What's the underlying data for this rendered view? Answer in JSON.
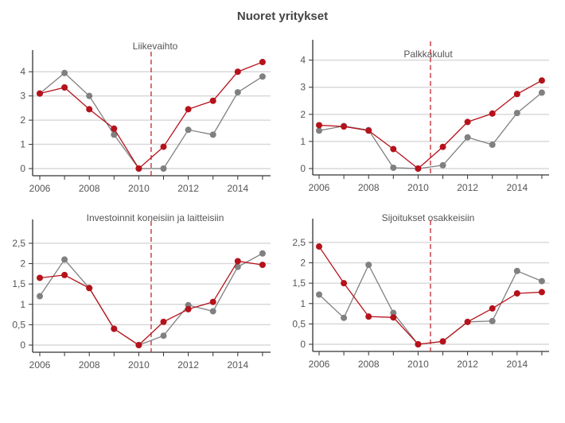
{
  "title": "Nuoret yritykset",
  "colors": {
    "series_red": "#b5121b",
    "series_gray": "#808080",
    "grid": "#d9d9d9",
    "divider": "#c0272d"
  },
  "chart_data": [
    {
      "type": "line",
      "title": "Liikevaihto",
      "x": [
        2006,
        2007,
        2008,
        2009,
        2010,
        2011,
        2012,
        2013,
        2014,
        2015
      ],
      "x_ticks": [
        "2006",
        "2008",
        "2010",
        "2012",
        "2014"
      ],
      "y_ticks": [
        "0",
        "1",
        "2",
        "3",
        "4"
      ],
      "y_tick_values": [
        0,
        1,
        2,
        3,
        4
      ],
      "ylim": [
        0,
        4.5
      ],
      "vline_x": 2010.5,
      "series": [
        {
          "name": "red",
          "values": [
            3.1,
            3.35,
            2.45,
            1.65,
            0,
            0.9,
            2.45,
            2.8,
            4.0,
            4.4
          ]
        },
        {
          "name": "gray",
          "values": [
            3.1,
            3.95,
            3.0,
            1.4,
            0,
            0,
            1.6,
            1.4,
            3.15,
            3.8
          ]
        }
      ]
    },
    {
      "type": "line",
      "title": "Palkkakulut",
      "x": [
        2006,
        2007,
        2008,
        2009,
        2010,
        2011,
        2012,
        2013,
        2014,
        2015
      ],
      "x_ticks": [
        "2006",
        "2008",
        "2010",
        "2012",
        "2014"
      ],
      "y_ticks": [
        "0",
        "1",
        "2",
        "3",
        "4"
      ],
      "y_tick_values": [
        0,
        1,
        2,
        3,
        4
      ],
      "ylim": [
        0,
        4.4
      ],
      "vline_x": 2010.5,
      "series": [
        {
          "name": "red",
          "values": [
            1.6,
            1.55,
            1.4,
            0.72,
            0,
            0.8,
            1.72,
            2.03,
            2.75,
            3.25
          ]
        },
        {
          "name": "gray",
          "values": [
            1.4,
            1.57,
            1.42,
            0.03,
            0,
            0.12,
            1.15,
            0.88,
            2.05,
            2.8
          ]
        }
      ]
    },
    {
      "type": "line",
      "title": "Investoinnit koneisiin ja laitteisiin",
      "x": [
        2006,
        2007,
        2008,
        2009,
        2010,
        2011,
        2012,
        2013,
        2014,
        2015
      ],
      "x_ticks": [
        "2006",
        "2008",
        "2010",
        "2012",
        "2014"
      ],
      "y_ticks": [
        "0",
        "0,5",
        "1",
        "1,5",
        "2",
        "2,5"
      ],
      "y_tick_values": [
        0,
        0.5,
        1,
        1.5,
        2,
        2.5
      ],
      "ylim": [
        0,
        2.85
      ],
      "vline_x": 2010.5,
      "series": [
        {
          "name": "red",
          "values": [
            1.65,
            1.72,
            1.4,
            0.4,
            0,
            0.57,
            0.88,
            1.06,
            2.06,
            1.97
          ]
        },
        {
          "name": "gray",
          "values": [
            1.2,
            2.1,
            1.4,
            0.4,
            0,
            0.23,
            0.98,
            0.83,
            1.92,
            2.25
          ]
        }
      ]
    },
    {
      "type": "line",
      "title": "Sijoitukset osakkeisiin",
      "x": [
        2006,
        2007,
        2008,
        2009,
        2010,
        2011,
        2012,
        2013,
        2014,
        2015
      ],
      "x_ticks": [
        "2006",
        "2008",
        "2010",
        "2012",
        "2014"
      ],
      "y_ticks": [
        "0",
        "0,5",
        "1",
        "1,5",
        "2",
        "2,5"
      ],
      "y_tick_values": [
        0,
        0.5,
        1,
        1.5,
        2,
        2.5
      ],
      "ylim": [
        0,
        2.85
      ],
      "vline_x": 2010.5,
      "series": [
        {
          "name": "red",
          "values": [
            2.4,
            1.5,
            0.68,
            0.66,
            0,
            0.07,
            0.55,
            0.88,
            1.25,
            1.28
          ]
        },
        {
          "name": "gray",
          "values": [
            1.22,
            0.65,
            1.95,
            0.77,
            0,
            0.07,
            0.55,
            0.57,
            1.8,
            1.55
          ]
        }
      ]
    }
  ]
}
